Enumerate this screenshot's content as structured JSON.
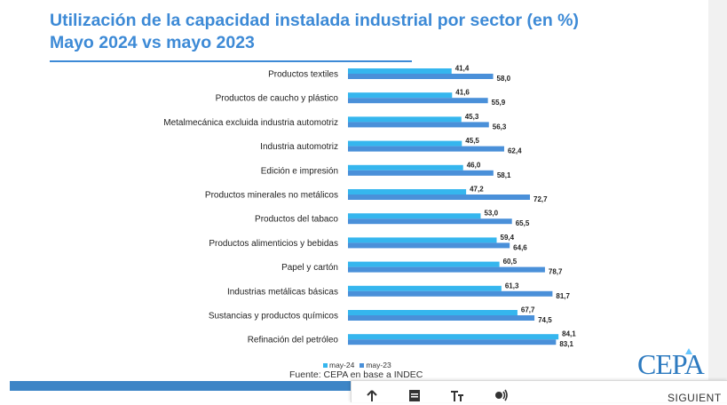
{
  "slide": {
    "title_line1": "Utilización de la capacidad instalada industrial por sector (en %)",
    "title_line2": "Mayo 2024 vs mayo 2023",
    "source": "Fuente: CEPA en base a INDEC",
    "logo": "CEPA"
  },
  "toolbar": {
    "share_icon": "share-icon",
    "doc_icon": "document-icon",
    "text_icon": "text-size-icon",
    "audio_icon": "listen-icon",
    "next_label": "SIGUIENT"
  },
  "colors": {
    "title": "#3d8ad6",
    "may24": "#35b6ee",
    "may23": "#4a90d9",
    "bottom_bar": "#3d85c6"
  },
  "chart_data": {
    "type": "bar",
    "orientation": "horizontal",
    "title": "Utilización de la capacidad instalada industrial por sector (en %)",
    "subtitle": "Mayo 2024 vs mayo 2023",
    "categories": [
      "Productos textiles",
      "Productos de caucho y plástico",
      "Metalmecánica excluida industria automotriz",
      "Industria automotriz",
      "Edición e impresión",
      "Productos minerales no metálicos",
      "Productos del tabaco",
      "Productos alimenticios y bebidas",
      "Papel y cartón",
      "Industrias metálicas básicas",
      "Sustancias y productos químicos",
      "Refinación del petróleo"
    ],
    "series": [
      {
        "name": "may-24",
        "values": [
          41.4,
          41.6,
          45.3,
          45.5,
          46.0,
          47.2,
          53.0,
          59.4,
          60.5,
          61.3,
          67.7,
          84.1
        ],
        "labels": [
          "41,4",
          "41,6",
          "45,3",
          "45,5",
          "46,0",
          "47,2",
          "53,0",
          "59,4",
          "60,5",
          "61,3",
          "67,7",
          "84,1"
        ]
      },
      {
        "name": "may-23",
        "values": [
          58.0,
          55.9,
          56.3,
          62.4,
          58.1,
          72.7,
          65.5,
          64.6,
          78.7,
          81.7,
          74.5,
          83.1
        ],
        "labels": [
          "58,0",
          "55,9",
          "56,3",
          "62,4",
          "58,1",
          "72,7",
          "65,5",
          "64,6",
          "78,7",
          "81,7",
          "74,5",
          "83,1"
        ]
      }
    ],
    "xlim": [
      0,
      100
    ],
    "grid": false,
    "legend_position": "bottom"
  }
}
